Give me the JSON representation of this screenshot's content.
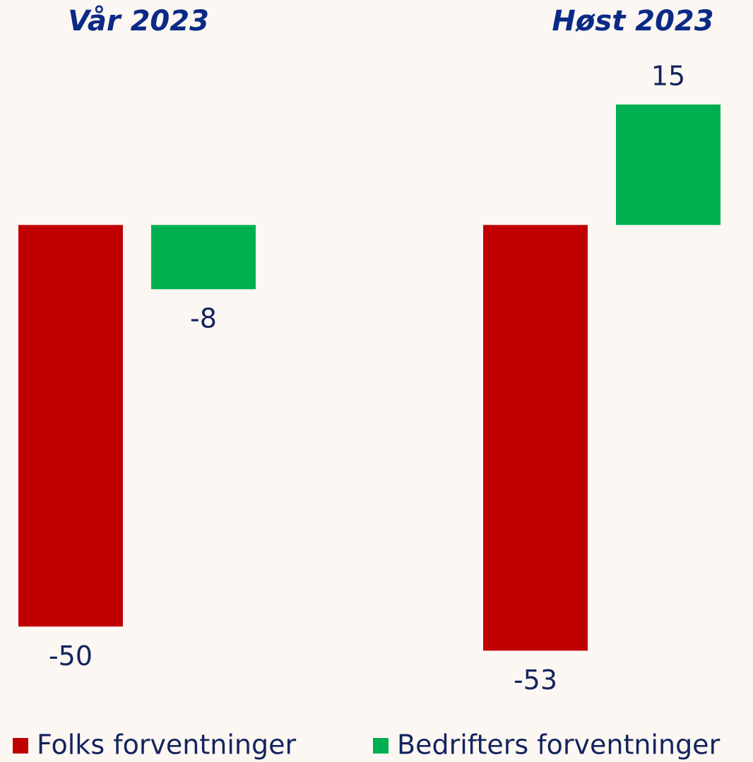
{
  "chart_data": {
    "type": "bar",
    "categories": [
      "Vår 2023",
      "Høst 2023"
    ],
    "series": [
      {
        "name": "Folks forventninger",
        "color": "#c00000",
        "values": [
          -50,
          -53
        ]
      },
      {
        "name": "Bedrifters forventninger",
        "color": "#00b050",
        "values": [
          -8,
          15
        ]
      }
    ],
    "ylim": [
      -60,
      20
    ]
  }
}
